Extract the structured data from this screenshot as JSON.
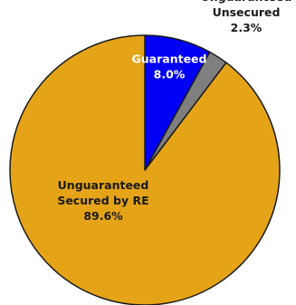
{
  "chart_data": {
    "type": "pie",
    "slices": [
      {
        "name": "Guaranteed",
        "label_lines": [
          "Guaranteed",
          "8.0%"
        ],
        "value": 8.0,
        "color": "#0000F5",
        "label_color": "#FFFFFF"
      },
      {
        "name": "Unguaranteed Unsecured",
        "label_lines": [
          "Unguaranteed",
          "Unsecured",
          "2.3%"
        ],
        "value": 2.3,
        "color": "#7F7F7F",
        "label_color": "#1A1A1A"
      },
      {
        "name": "Unguaranteed Secured by RE",
        "label_lines": [
          "Unguaranteed",
          "Secured by RE",
          "89.6%"
        ],
        "value": 89.6,
        "color": "#E5A418",
        "label_color": "#1A1A1A"
      }
    ],
    "start_angle_deg": 0,
    "direction": "clockwise",
    "legend": "none",
    "slice_border_color": "#1A1A1A"
  }
}
